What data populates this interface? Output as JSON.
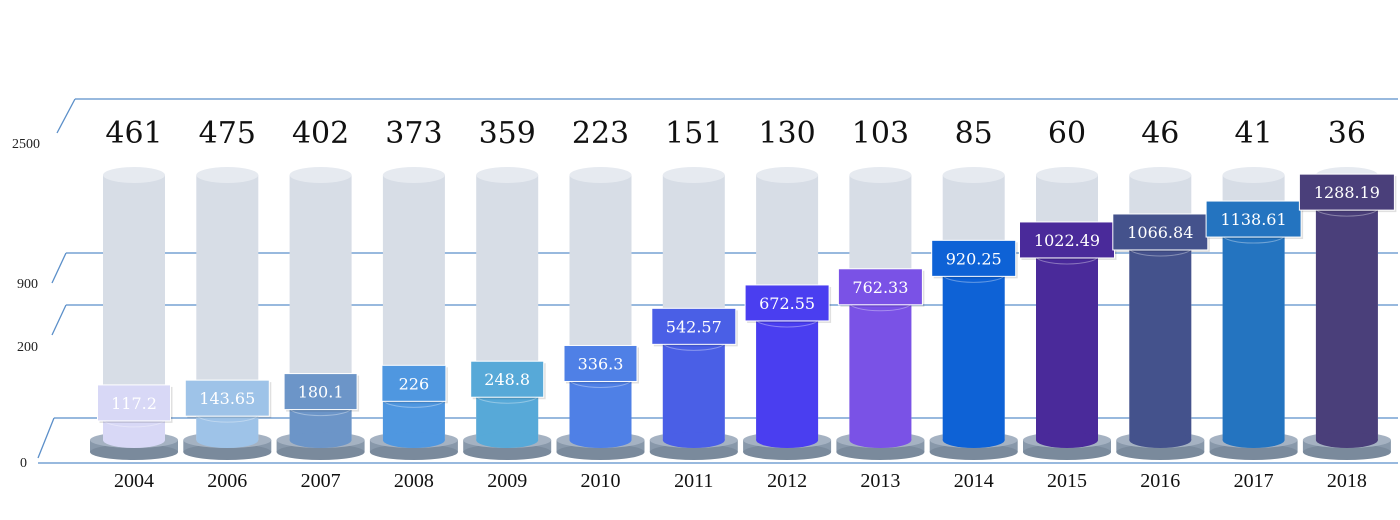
{
  "chart_data": {
    "type": "bar",
    "categories": [
      "2004",
      "2006",
      "2007",
      "2008",
      "2009",
      "2010",
      "2011",
      "2012",
      "2013",
      "2014",
      "2015",
      "2016",
      "2017",
      "2018"
    ],
    "series": [
      {
        "values": [
          117.2,
          143.65,
          180.1,
          226,
          248.8,
          336.3,
          542.57,
          672.55,
          762.33,
          920.25,
          1022.49,
          1066.84,
          1138.61,
          1288.19
        ]
      },
      {
        "values": [
          461,
          475,
          402,
          373,
          359,
          223,
          151,
          130,
          103,
          85,
          60,
          46,
          41,
          36
        ]
      }
    ],
    "value_labels": [
      "117.2",
      "143.65",
      "180.1",
      "226",
      "248.8",
      "336.3",
      "542.57",
      "672.55",
      "762.33",
      "920.25",
      "1022.49",
      "1066.84",
      "1138.61",
      "1288.19"
    ],
    "top_labels": [
      "461",
      "475",
      "402",
      "373",
      "359",
      "223",
      "151",
      "130",
      "103",
      "85",
      "60",
      "46",
      "41",
      "36"
    ],
    "y_ticks": [
      "0",
      "200",
      "900",
      "2500"
    ],
    "ylim": [
      0,
      2500
    ],
    "grid": true,
    "colors": [
      "#d8d8f6",
      "#9ec3e8",
      "#6c95c8",
      "#4f97e0",
      "#57a9d8",
      "#4f80e6",
      "#4a5fe6",
      "#4a3ef0",
      "#7a52e6",
      "#0e62d6",
      "#4a2a9a",
      "#44528c",
      "#2474c0",
      "#4a3f7a"
    ],
    "ghost_color": "#d7dde6",
    "base_color": "#8898aa"
  }
}
